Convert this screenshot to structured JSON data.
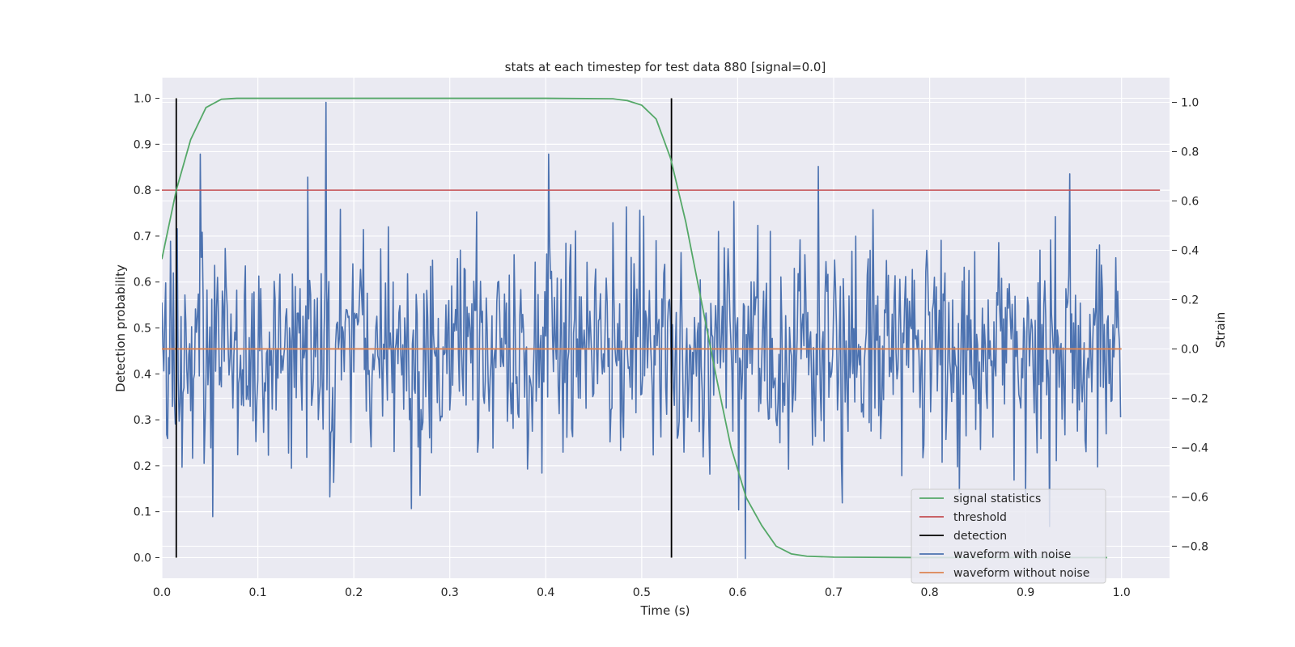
{
  "chart_data": {
    "type": "line",
    "title": "stats at each timestep for test data 880 [signal=0.0]",
    "xlabel": "Time (s)",
    "ylabel_left": "Detection probability",
    "ylabel_right": "Strain",
    "xlim": [
      0.0,
      1.05
    ],
    "ylim_left": [
      -0.045,
      1.045
    ],
    "ylim_right": [
      -0.93,
      1.1
    ],
    "x_ticks": [
      "0.0",
      "0.1",
      "0.2",
      "0.3",
      "0.4",
      "0.5",
      "0.6",
      "0.7",
      "0.8",
      "0.9",
      "1.0"
    ],
    "y_left_ticks": [
      "0.0",
      "0.1",
      "0.2",
      "0.3",
      "0.4",
      "0.5",
      "0.6",
      "0.7",
      "0.8",
      "0.9",
      "1.0"
    ],
    "y_right_ticks": [
      "−0.8",
      "−0.6",
      "−0.4",
      "−0.2",
      "0.0",
      "0.2",
      "0.4",
      "0.6",
      "0.8",
      "1.0"
    ],
    "grid": true,
    "legend_position": "lower-right",
    "colors": {
      "signal_statistics": "#55a868",
      "threshold": "#c44e52",
      "detection": "#000000",
      "waveform_with_noise": "#4c72b0",
      "waveform_without_noise": "#dd8452",
      "plot_background": "#eaeaf2",
      "grid": "#ffffff"
    },
    "series": [
      {
        "name": "signal statistics",
        "axis": "left",
        "x": [
          0.0,
          0.015,
          0.03,
          0.046,
          0.062,
          0.078,
          0.1,
          0.2,
          0.3,
          0.4,
          0.47,
          0.485,
          0.5,
          0.515,
          0.53,
          0.546,
          0.562,
          0.578,
          0.593,
          0.609,
          0.625,
          0.64,
          0.656,
          0.672,
          0.7,
          0.8,
          0.9,
          0.985
        ],
        "y": [
          0.65,
          0.8,
          0.91,
          0.98,
          0.998,
          1.0,
          1.0,
          1.0,
          1.0,
          1.0,
          0.999,
          0.995,
          0.985,
          0.955,
          0.87,
          0.73,
          0.56,
          0.39,
          0.24,
          0.13,
          0.07,
          0.025,
          0.008,
          0.003,
          0.001,
          0.0,
          0.0,
          0.0
        ]
      },
      {
        "name": "threshold",
        "axis": "left",
        "x": [
          0.0,
          1.04
        ],
        "y": [
          0.8,
          0.8
        ]
      },
      {
        "name": "detection",
        "axis": "left",
        "x_positions": [
          0.015,
          0.531
        ],
        "y_range": [
          0.0,
          1.0
        ]
      },
      {
        "name": "waveform with noise",
        "axis": "right",
        "x_range": [
          0.0,
          0.999
        ],
        "samples": 1000,
        "value_range": [
          -0.85,
          1.0
        ],
        "mean": 0.0,
        "extremes": [
          {
            "x": 0.171,
            "y": 1.0
          },
          {
            "x": 0.04,
            "y": 0.79
          },
          {
            "x": 0.403,
            "y": 0.79
          },
          {
            "x": 0.684,
            "y": 0.74
          },
          {
            "x": 0.946,
            "y": 0.71
          },
          {
            "x": 0.608,
            "y": -0.85
          },
          {
            "x": 0.053,
            "y": -0.68
          },
          {
            "x": 0.175,
            "y": -0.6
          },
          {
            "x": 0.925,
            "y": -0.72
          }
        ]
      },
      {
        "name": "waveform without noise",
        "axis": "right",
        "x": [
          0.0,
          1.0
        ],
        "y": [
          0.0,
          0.0
        ]
      }
    ]
  }
}
